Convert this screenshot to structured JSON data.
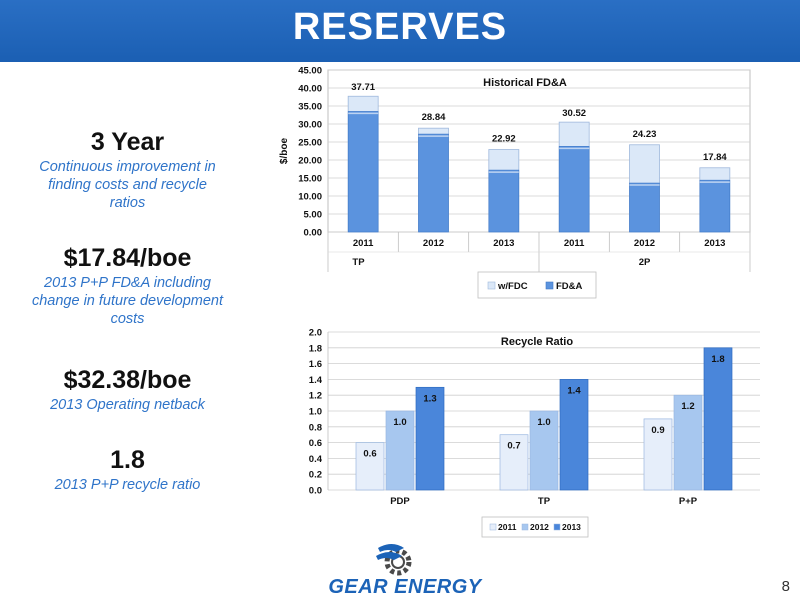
{
  "title": "RESERVES",
  "metrics": [
    {
      "value": "3 Year",
      "desc": [
        "Continuous improvement in",
        "finding costs and recycle",
        "ratios"
      ]
    },
    {
      "value": "$17.84/boe",
      "desc": [
        "2013 P+P FD&A including",
        "change in future development",
        "costs"
      ]
    },
    {
      "value": "$32.38/boe",
      "desc": [
        "2013 Operating netback"
      ]
    },
    {
      "value": "1.8",
      "desc": [
        "2013 P+P recycle ratio"
      ]
    }
  ],
  "chart_data": [
    {
      "type": "bar",
      "title": "Historical FD&A",
      "ylabel": "$/boe",
      "ylim": [
        0,
        45
      ],
      "yticks": [
        "0.00",
        "5.00",
        "10.00",
        "15.00",
        "20.00",
        "25.00",
        "30.00",
        "35.00",
        "40.00",
        "45.00"
      ],
      "categories": [
        "2011",
        "2012",
        "2013",
        "2011",
        "2012",
        "2013"
      ],
      "groups": [
        "TP",
        "2P"
      ],
      "group_sizes": [
        3,
        3
      ],
      "series": [
        {
          "name": "w/FDC",
          "values": [
            37.71,
            28.84,
            22.92,
            30.52,
            24.23,
            17.84
          ],
          "color": "#dbe8f8"
        },
        {
          "name": "FD&A",
          "values": [
            33.5,
            27.2,
            17.2,
            23.8,
            13.6,
            14.4
          ],
          "color": "#5b93de"
        }
      ],
      "data_labels": [
        "37.71",
        "28.84",
        "22.92",
        "30.52",
        "24.23",
        "17.84"
      ],
      "stacked": false,
      "legend_position": "bottom",
      "grid": true
    },
    {
      "type": "bar",
      "title": "Recycle Ratio",
      "ylim": [
        0,
        2.0
      ],
      "yticks": [
        "0.0",
        "0.2",
        "0.4",
        "0.6",
        "0.8",
        "1.0",
        "1.2",
        "1.4",
        "1.6",
        "1.8",
        "2.0"
      ],
      "categories": [
        "PDP",
        "TP",
        "P+P"
      ],
      "series": [
        {
          "name": "2011",
          "values": [
            0.6,
            0.7,
            0.9
          ],
          "labels": [
            "0.6",
            "0.7",
            "0.9"
          ],
          "color": "#e6eefa"
        },
        {
          "name": "2012",
          "values": [
            1.0,
            1.0,
            1.2
          ],
          "labels": [
            "1.0",
            "1.0",
            "1.2"
          ],
          "color": "#a7c7ef"
        },
        {
          "name": "2013",
          "values": [
            1.3,
            1.4,
            1.8
          ],
          "labels": [
            "1.3",
            "1.4",
            "1.8"
          ],
          "color": "#4a86da"
        }
      ],
      "legend_position": "bottom",
      "grid": true
    }
  ],
  "logo": {
    "text": "GEAR ENERGY"
  },
  "page_number": "8"
}
